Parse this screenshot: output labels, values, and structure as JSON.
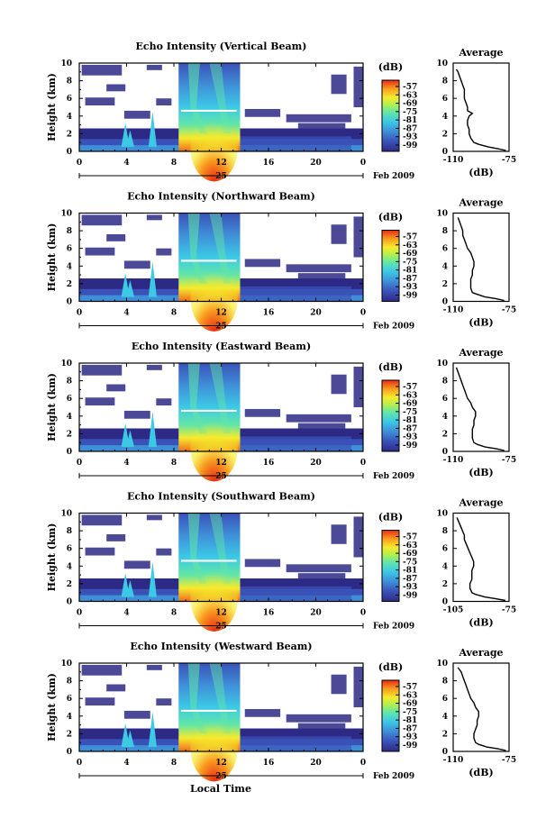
{
  "chart_data": [
    {
      "type": "heatmap",
      "title": "Echo Intensity (Vertical Beam)",
      "ylabel": "Height (km)",
      "x_ticks": [
        "0",
        "4",
        "8",
        "12",
        "16",
        "20",
        "0"
      ],
      "date_label": "25",
      "date_suffix": "Feb 2009",
      "y_ticks": [
        "0",
        "2",
        "4",
        "6",
        "8",
        "10"
      ],
      "xlim": [
        0,
        24
      ],
      "ylim": [
        0,
        10
      ],
      "colorbar": {
        "title": "(dB)",
        "ticks": [
          "-57",
          "-63",
          "-69",
          "-75",
          "-81",
          "-87",
          "-93",
          "-99"
        ]
      },
      "average": {
        "title": "Average",
        "xlabel": "(dB)",
        "xlim": [
          -110,
          -75
        ],
        "x_ticks": [
          "-110",
          "-75"
        ],
        "y_ticks": [
          "0",
          "2",
          "4",
          "6",
          "8",
          "10"
        ],
        "height": [
          0.1,
          0.3,
          0.5,
          0.8,
          1,
          1.5,
          2,
          2.5,
          3,
          3.5,
          4,
          4.3,
          4.6,
          5,
          5.5,
          6,
          6.5,
          7,
          7.5,
          8,
          8.5,
          9,
          9.3
        ],
        "values": [
          -77,
          -82,
          -88,
          -94,
          -97,
          -99,
          -100,
          -100,
          -101,
          -101,
          -100,
          -98,
          -101,
          -101,
          -102,
          -103,
          -103,
          -103,
          -104,
          -105,
          -106,
          -107,
          -108
        ]
      }
    },
    {
      "type": "heatmap",
      "title": "Echo Intensity (Northward Beam)",
      "ylabel": "Height (km)",
      "x_ticks": [
        "0",
        "4",
        "8",
        "12",
        "16",
        "20",
        "0"
      ],
      "date_label": "25",
      "date_suffix": "Feb 2009",
      "y_ticks": [
        "0",
        "2",
        "4",
        "6",
        "8",
        "10"
      ],
      "xlim": [
        0,
        24
      ],
      "ylim": [
        0,
        10
      ],
      "colorbar": {
        "title": "(dB)",
        "ticks": [
          "-57",
          "-63",
          "-69",
          "-75",
          "-81",
          "-87",
          "-93",
          "-99"
        ]
      },
      "average": {
        "title": "Average",
        "xlabel": "(dB)",
        "xlim": [
          -110,
          -75
        ],
        "x_ticks": [
          "-110",
          "-75"
        ],
        "y_ticks": [
          "0",
          "2",
          "4",
          "6",
          "8",
          "10"
        ],
        "height": [
          0.1,
          0.3,
          0.5,
          0.8,
          1,
          1.5,
          2,
          2.5,
          3,
          3.5,
          4,
          4.5,
          5,
          5.5,
          6,
          6.5,
          7,
          7.5,
          8,
          8.5,
          9,
          9.5
        ],
        "values": [
          -78,
          -83,
          -90,
          -95,
          -98,
          -99,
          -99,
          -99,
          -98,
          -98,
          -97,
          -97,
          -98,
          -99,
          -101,
          -102,
          -103,
          -104,
          -104,
          -105,
          -106,
          -107
        ]
      }
    },
    {
      "type": "heatmap",
      "title": "Echo Intensity (Eastward Beam)",
      "ylabel": "Height (km)",
      "x_ticks": [
        "0",
        "4",
        "8",
        "12",
        "16",
        "20",
        "0"
      ],
      "date_label": "25",
      "date_suffix": "Feb 2009",
      "y_ticks": [
        "0",
        "2",
        "4",
        "6",
        "8",
        "10"
      ],
      "xlim": [
        0,
        24
      ],
      "ylim": [
        0,
        10
      ],
      "colorbar": {
        "title": "(dB)",
        "ticks": [
          "-57",
          "-63",
          "-69",
          "-75",
          "-81",
          "-87",
          "-93",
          "-99"
        ]
      },
      "average": {
        "title": "Average",
        "xlabel": "(dB)",
        "xlim": [
          -110,
          -75
        ],
        "x_ticks": [
          "-110",
          "-75"
        ],
        "y_ticks": [
          "0",
          "2",
          "4",
          "6",
          "8",
          "10"
        ],
        "height": [
          0.1,
          0.3,
          0.5,
          0.8,
          1,
          1.5,
          2,
          2.5,
          3,
          3.5,
          4,
          4.5,
          5,
          5.5,
          6,
          6.5,
          7,
          7.5,
          8,
          8.5,
          9,
          9.5
        ],
        "values": [
          -78,
          -83,
          -90,
          -95,
          -97,
          -98,
          -98,
          -98,
          -97,
          -97,
          -96,
          -96,
          -98,
          -99,
          -101,
          -102,
          -103,
          -104,
          -105,
          -106,
          -107,
          -108
        ]
      }
    },
    {
      "type": "heatmap",
      "title": "Echo Intensity (Southward Beam)",
      "ylabel": "Height (km)",
      "x_ticks": [
        "0",
        "4",
        "8",
        "12",
        "16",
        "20",
        "0"
      ],
      "date_label": "25",
      "date_suffix": "Feb 2009",
      "y_ticks": [
        "0",
        "2",
        "4",
        "6",
        "8",
        "10"
      ],
      "xlim": [
        0,
        24
      ],
      "ylim": [
        0,
        10
      ],
      "colorbar": {
        "title": "(dB)",
        "ticks": [
          "-57",
          "-63",
          "-69",
          "-75",
          "-81",
          "-87",
          "-93",
          "-99"
        ]
      },
      "average": {
        "title": "Average",
        "xlabel": "(dB)",
        "xlim": [
          -105,
          -75
        ],
        "x_ticks": [
          "-105",
          "-75"
        ],
        "y_ticks": [
          "0",
          "2",
          "4",
          "6",
          "8",
          "10"
        ],
        "height": [
          0.1,
          0.3,
          0.5,
          0.8,
          1,
          1.5,
          2,
          2.5,
          3,
          3.5,
          4,
          4.5,
          5,
          5.5,
          6,
          6.5,
          7,
          7.5,
          8,
          8.5,
          9,
          9.5
        ],
        "values": [
          -77,
          -82,
          -88,
          -93,
          -95,
          -96,
          -96,
          -95,
          -95,
          -95,
          -94,
          -94,
          -95,
          -96,
          -97,
          -98,
          -99,
          -99,
          -100,
          -101,
          -102,
          -103
        ]
      }
    },
    {
      "type": "heatmap",
      "title": "Echo Intensity (Westward Beam)",
      "ylabel": "Height (km)",
      "x_ticks": [
        "0",
        "4",
        "8",
        "12",
        "16",
        "20",
        "0"
      ],
      "date_label": "25",
      "date_suffix": "Feb 2009",
      "y_ticks": [
        "0",
        "2",
        "4",
        "6",
        "8",
        "10"
      ],
      "xlim": [
        0,
        24
      ],
      "ylim": [
        0,
        10
      ],
      "colorbar": {
        "title": "(dB)",
        "ticks": [
          "-57",
          "-63",
          "-69",
          "-75",
          "-81",
          "-87",
          "-93",
          "-99"
        ]
      },
      "average": {
        "title": "Average",
        "xlabel": "(dB)",
        "xlim": [
          -110,
          -75
        ],
        "x_ticks": [
          "-110",
          "-75"
        ],
        "y_ticks": [
          "0",
          "2",
          "4",
          "6",
          "8",
          "10"
        ],
        "height": [
          0.1,
          0.3,
          0.5,
          0.8,
          1,
          1.5,
          2,
          2.5,
          3,
          3.5,
          4,
          4.5,
          5,
          5.5,
          6,
          6.5,
          7,
          7.5,
          8,
          8.5,
          9,
          9.5
        ],
        "values": [
          -77,
          -82,
          -89,
          -94,
          -96,
          -97,
          -97,
          -96,
          -95,
          -95,
          -94,
          -94,
          -96,
          -97,
          -99,
          -100,
          -101,
          -102,
          -103,
          -104,
          -105,
          -107
        ]
      }
    }
  ],
  "xlabel": "Local Time"
}
